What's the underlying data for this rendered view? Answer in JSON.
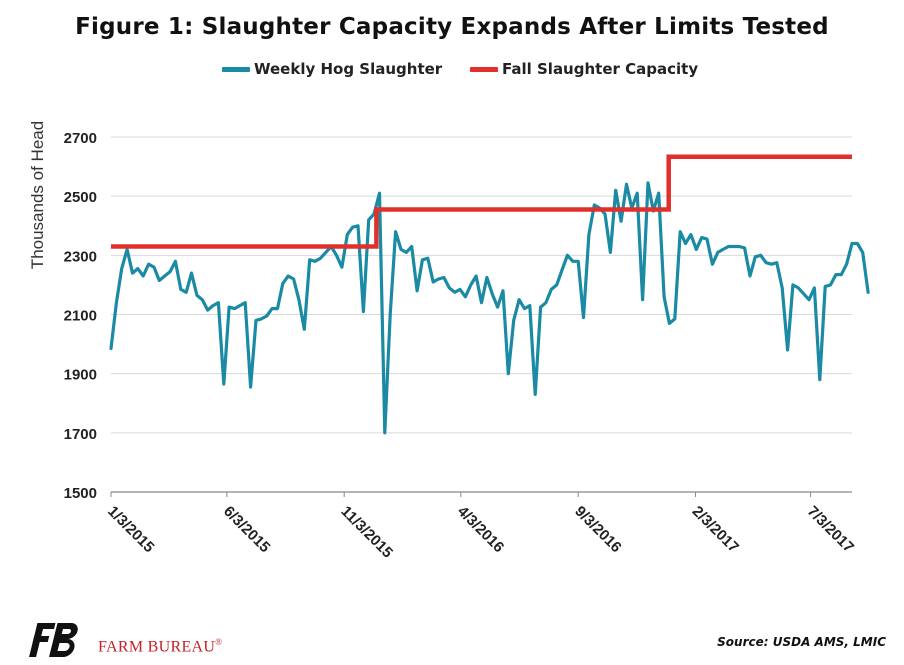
{
  "title": "Figure 1: Slaughter Capacity Expands After Limits Tested",
  "source": "Source: USDA AMS, LMIC",
  "brand": {
    "name": "FARM BUREAU",
    "mark": "®",
    "logo_icon": "fb-logo-icon"
  },
  "colors": {
    "slaughter": "#1a8aa5",
    "capacity": "#e0302b",
    "grid": "#d9d9d9",
    "axis": "#888888",
    "brand": "#c62026"
  },
  "chart_data": {
    "type": "line",
    "title": "Figure 1: Slaughter Capacity Expands After Limits Tested",
    "ylabel": "Thousands of Head",
    "xlabel": "",
    "ylim": [
      1500,
      2700
    ],
    "yticks": [
      1500,
      1700,
      1900,
      2100,
      2300,
      2500,
      2700
    ],
    "xlim": [
      "2015-01-03",
      "2017-08-26"
    ],
    "xticks": [
      "1/3/2015",
      "6/3/2015",
      "11/3/2015",
      "4/3/2016",
      "9/3/2016",
      "2/3/2017",
      "7/3/2017"
    ],
    "xtick_dates": [
      "2015-01-03",
      "2015-06-03",
      "2015-11-03",
      "2016-04-03",
      "2016-09-03",
      "2017-02-03",
      "2017-07-03"
    ],
    "grid": "horizontal",
    "legend_position": "top",
    "series": [
      {
        "name": "Weekly Hog Slaughter",
        "start_date": "2015-01-03",
        "interval_days": 7,
        "values": [
          1985,
          2140,
          2255,
          2320,
          2240,
          2255,
          2230,
          2270,
          2260,
          2215,
          2230,
          2245,
          2280,
          2185,
          2175,
          2240,
          2165,
          2150,
          2115,
          2130,
          2140,
          1865,
          2125,
          2120,
          2130,
          2140,
          1855,
          2080,
          2085,
          2095,
          2120,
          2120,
          2205,
          2230,
          2220,
          2150,
          2050,
          2285,
          2280,
          2290,
          2310,
          2330,
          2300,
          2260,
          2370,
          2395,
          2400,
          2110,
          2420,
          2440,
          2510,
          1700,
          2100,
          2380,
          2320,
          2310,
          2330,
          2180,
          2285,
          2290,
          2210,
          2220,
          2225,
          2190,
          2175,
          2185,
          2160,
          2200,
          2230,
          2140,
          2225,
          2170,
          2125,
          2180,
          1900,
          2080,
          2150,
          2120,
          2130,
          1830,
          2125,
          2140,
          2185,
          2200,
          2250,
          2300,
          2280,
          2280,
          2090,
          2370,
          2470,
          2460,
          2440,
          2310,
          2520,
          2415,
          2540,
          2460,
          2510,
          2150,
          2545,
          2450,
          2510,
          2160,
          2070,
          2085,
          2380,
          2340,
          2370,
          2320,
          2360,
          2355,
          2270,
          2310,
          2320,
          2330,
          2330,
          2330,
          2325,
          2230,
          2295,
          2300,
          2275,
          2270,
          2275,
          2190,
          1980,
          2200,
          2190,
          2170,
          2150,
          2190,
          1880,
          2195,
          2200,
          2235,
          2235,
          2270,
          2340,
          2340,
          2310,
          2175
        ]
      },
      {
        "name": "Fall Slaughter Capacity",
        "points": [
          [
            "2015-01-03",
            2330
          ],
          [
            "2015-12-15",
            2330
          ],
          [
            "2015-12-15",
            2455
          ],
          [
            "2016-12-30",
            2455
          ],
          [
            "2016-12-30",
            2633
          ],
          [
            "2017-08-26",
            2633
          ]
        ]
      }
    ]
  }
}
